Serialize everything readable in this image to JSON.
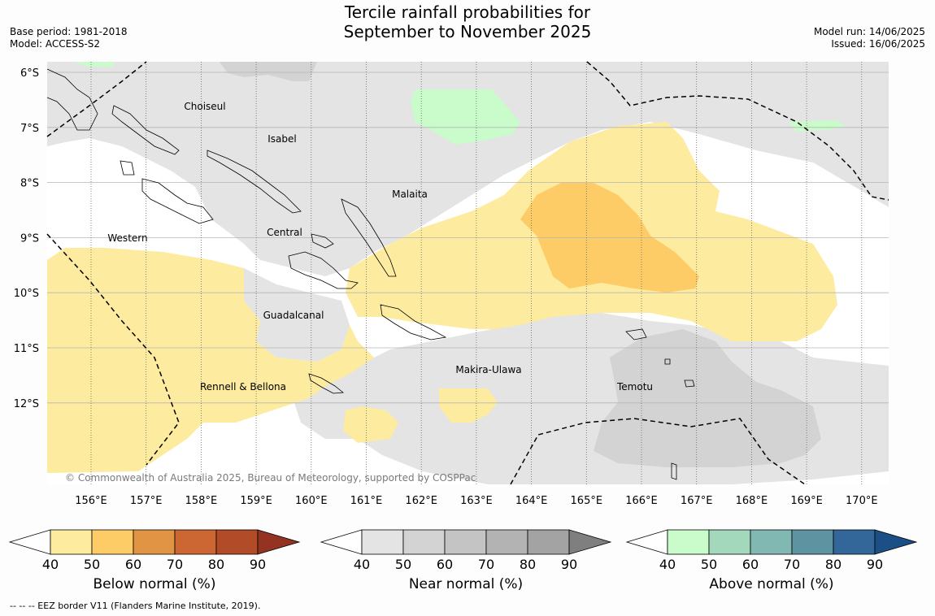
{
  "header": {
    "title_line1": "Tercile rainfall probabilities for",
    "title_line2": "September to November 2025",
    "base_period": "Base period: 1981-2018",
    "model": "Model: ACCESS-S2",
    "model_run": "Model run: 14/06/2025",
    "issued": "Issued: 16/06/2025"
  },
  "map": {
    "lat_labels": [
      "6°S",
      "7°S",
      "8°S",
      "9°S",
      "10°S",
      "11°S",
      "12°S"
    ],
    "lon_labels": [
      "156°E",
      "157°E",
      "158°E",
      "159°E",
      "160°E",
      "161°E",
      "162°E",
      "163°E",
      "164°E",
      "165°E",
      "166°E",
      "167°E",
      "168°E",
      "169°E",
      "170°E"
    ],
    "regions": [
      "Choiseul",
      "Isabel",
      "Malaita",
      "Western",
      "Central",
      "Guadalcanal",
      "Makira-Ulawa",
      "Rennell & Bellona",
      "Temotu"
    ],
    "copyright": "© Commonwealth of Australia 2025, Bureau of Meteorology, supported by COSPPac"
  },
  "colorbars": [
    {
      "title": "Below normal (%)",
      "ticks": [
        "40",
        "50",
        "60",
        "70",
        "80",
        "90"
      ],
      "low_color": "#ffffff",
      "colors": [
        "#fdeba0",
        "#fdcc66",
        "#e09444",
        "#cc6633",
        "#b24b28",
        "#943321"
      ]
    },
    {
      "title": "Near normal (%)",
      "ticks": [
        "40",
        "50",
        "60",
        "70",
        "80",
        "90"
      ],
      "low_color": "#ffffff",
      "colors": [
        "#e4e4e4",
        "#d3d3d3",
        "#c4c4c4",
        "#b3b3b3",
        "#a3a3a3",
        "#7f7f7f"
      ]
    },
    {
      "title": "Above normal (%)",
      "ticks": [
        "40",
        "50",
        "60",
        "70",
        "80",
        "90"
      ],
      "low_color": "#ffffff",
      "colors": [
        "#c9fbcb",
        "#a3d8bd",
        "#81b8b2",
        "#5e94a1",
        "#336699",
        "#1b4f86"
      ]
    }
  ],
  "footer": "--  --  -- EEZ border V11 (Flanders Marine Institute, 2019)."
}
